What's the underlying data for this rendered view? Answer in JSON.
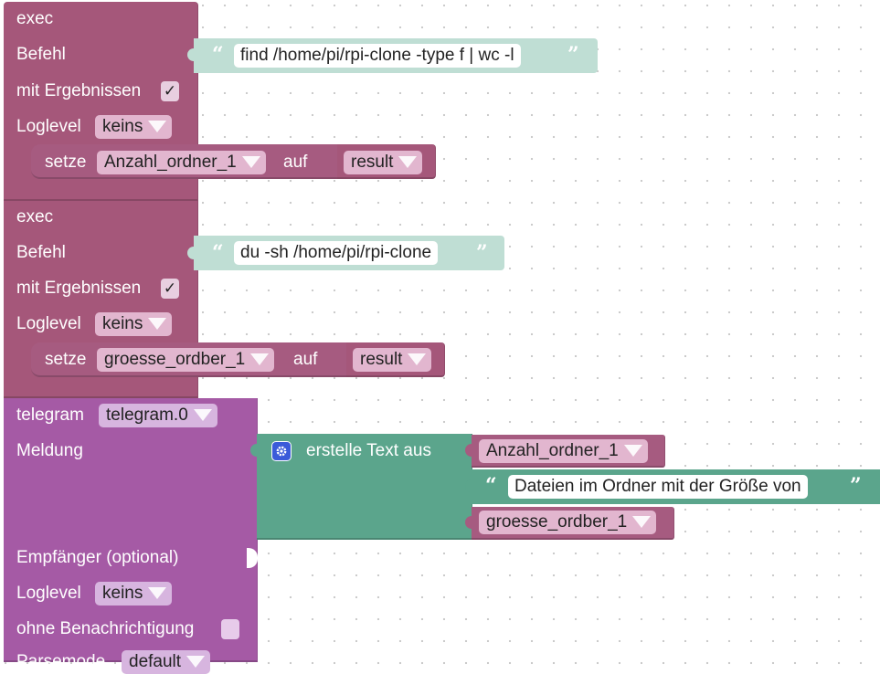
{
  "exec1": {
    "title": "exec",
    "befehl_label": "Befehl",
    "command": "find /home/pi/rpi-clone -type f | wc -l",
    "mit_ergebnissen_label": "mit Ergebnissen",
    "mit_ergebnissen_checked": "✓",
    "loglevel_label": "Loglevel",
    "loglevel_value": "keins",
    "setze_label": "setze",
    "setze_var": "Anzahl_ordner_1",
    "auf_label": "auf",
    "result_label": "result"
  },
  "exec2": {
    "title": "exec",
    "befehl_label": "Befehl",
    "command": "du -sh /home/pi/rpi-clone",
    "mit_ergebnissen_label": "mit Ergebnissen",
    "mit_ergebnissen_checked": "✓",
    "loglevel_label": "Loglevel",
    "loglevel_value": "keins",
    "setze_label": "setze",
    "setze_var": "groesse_ordber_1",
    "auf_label": "auf",
    "result_label": "result"
  },
  "telegram": {
    "title": "telegram",
    "instance": "telegram.0",
    "meldung_label": "Meldung",
    "empfaenger_label": "Empfänger (optional)",
    "loglevel_label": "Loglevel",
    "loglevel_value": "keins",
    "ohne_label": "ohne Benachrichtigung",
    "parsemode_label": "Parsemode",
    "parsemode_value": "default"
  },
  "text_join": {
    "label": "erstelle Text aus",
    "item1": "Anzahl_ordner_1",
    "item2": "Dateien im Ordner mit der Größe von",
    "item3": "groesse_ordber_1"
  },
  "colors": {
    "exec_block": "#a5577a",
    "var_block": "#a65b80",
    "telegram_block": "#a55aa5",
    "text_block": "#5ba58c",
    "string_block": "#bfded4",
    "workspace_bg": "#ffffff"
  },
  "icons": {
    "open_quote": "“",
    "close_quote": "”",
    "gear": "gear-icon"
  }
}
